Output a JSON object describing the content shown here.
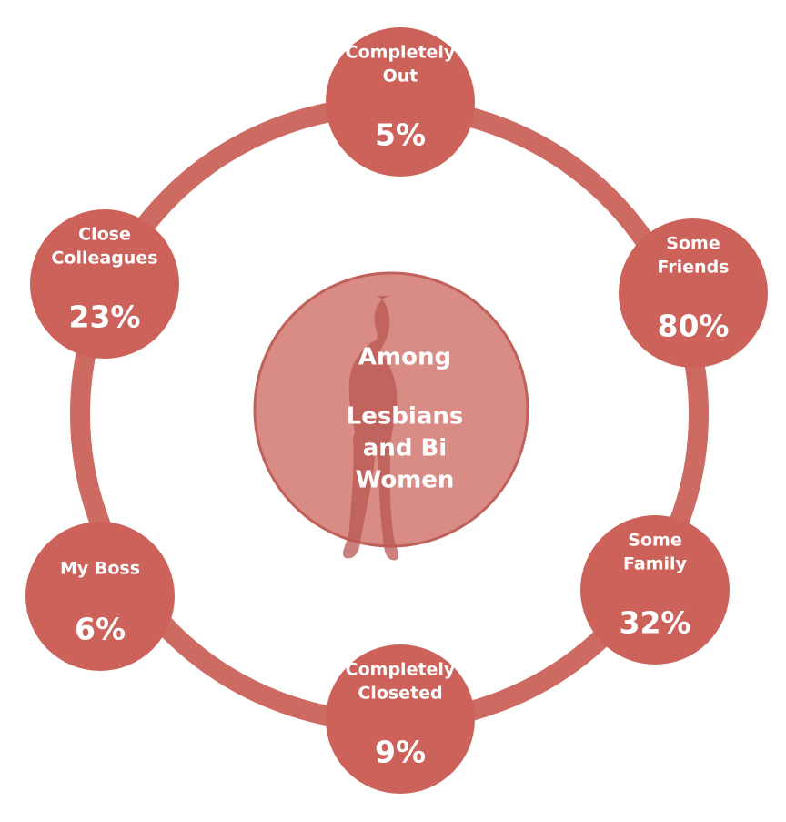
{
  "center": {
    "lines": [
      "Among",
      "Lesbians",
      "and Bi",
      "Women"
    ]
  },
  "nodes": [
    {
      "lines": [
        "Completely",
        "Out"
      ],
      "value": "5%"
    },
    {
      "lines": [
        "Some",
        "Friends"
      ],
      "value": "80%"
    },
    {
      "lines": [
        "Some",
        "Family"
      ],
      "value": "32%"
    },
    {
      "lines": [
        "Completely",
        "Closeted"
      ],
      "value": "9%"
    },
    {
      "lines": [
        "My Boss"
      ],
      "value": "6%"
    },
    {
      "lines": [
        "Close",
        "Colleagues"
      ],
      "value": "23%"
    }
  ]
}
